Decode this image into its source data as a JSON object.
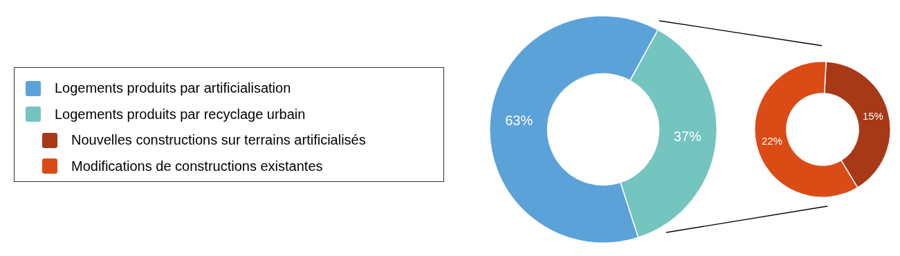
{
  "chart_data": [
    {
      "type": "donut",
      "categories": [
        "Logements produits par artificialisation",
        "Logements produits par recyclage urbain"
      ],
      "values": [
        63,
        37
      ],
      "colors": [
        "#5ba2d9",
        "#74c4c0"
      ],
      "value_labels": [
        "63%",
        "37%"
      ],
      "legend": "left"
    },
    {
      "type": "donut",
      "categories": [
        "Nouvelles constructions sur terrains artificialisés",
        "Modifications de constructions existantes"
      ],
      "values": [
        15,
        22
      ],
      "colors": [
        "#a83916",
        "#db4b15"
      ],
      "value_labels": [
        "15%",
        "22%"
      ],
      "legend": "left"
    }
  ]
}
